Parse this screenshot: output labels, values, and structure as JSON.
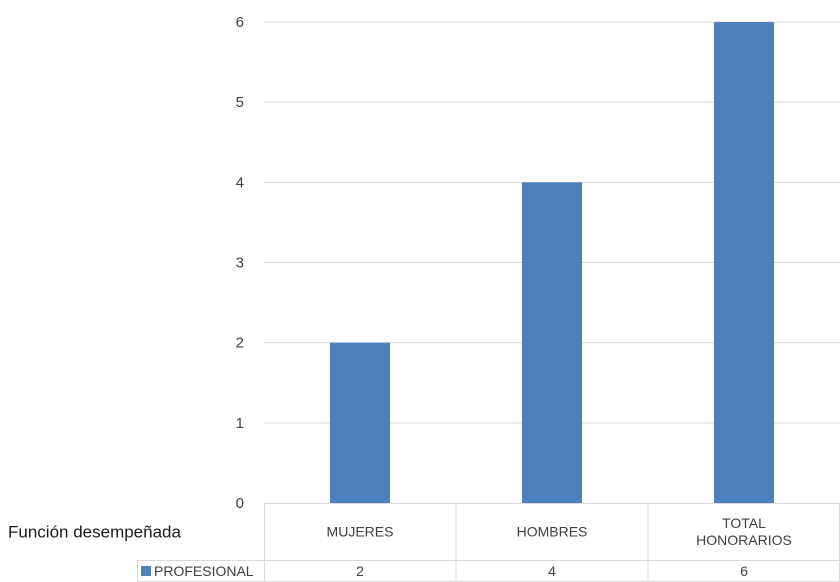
{
  "chart_data": {
    "type": "bar",
    "categories": [
      "MUJERES",
      "HOMBRES",
      "TOTAL HONORARIOS"
    ],
    "category_lines": [
      [
        "MUJERES"
      ],
      [
        "HOMBRES"
      ],
      [
        "TOTAL",
        "HONORARIOS"
      ]
    ],
    "series": [
      {
        "name": "PROFESIONAL",
        "values": [
          2,
          4,
          6
        ],
        "color": "#4f81bd"
      }
    ],
    "ylim": [
      0,
      6
    ],
    "yticks": [
      0,
      1,
      2,
      3,
      4,
      5,
      6
    ],
    "grid": true,
    "data_table": {
      "row_title": "Función desempeñada",
      "rows": [
        {
          "label": "PROFESIONAL",
          "values": [
            "2",
            "4",
            "6"
          ]
        }
      ]
    }
  }
}
